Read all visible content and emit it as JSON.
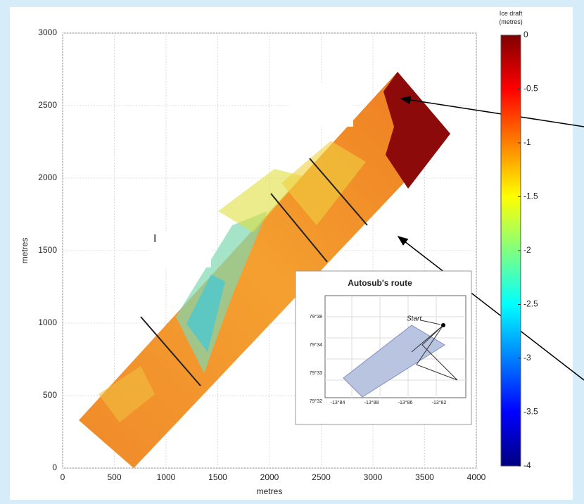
{
  "chart_data": {
    "type": "heatmap",
    "xlabel": "metres",
    "ylabel": "metres",
    "xlim": [
      0,
      4000
    ],
    "ylim": [
      0,
      3000
    ],
    "xticks": [
      0,
      500,
      1000,
      1500,
      2000,
      2500,
      3000,
      3500,
      4000
    ],
    "yticks": [
      0,
      500,
      1000,
      1500,
      2000,
      2500,
      3000
    ],
    "grid": true,
    "annotation": "I",
    "colorbar": {
      "label": "Ice draft (metres)",
      "lim": [
        -4,
        0
      ],
      "ticks": [
        0,
        -0.5,
        -1,
        -1.5,
        -2,
        -2.5,
        -3,
        -3.5,
        -4
      ],
      "colormap": [
        "#7f0000",
        "#ff0000",
        "#ff8000",
        "#ffff00",
        "#80ff80",
        "#00ffff",
        "#0080ff",
        "#0000ff",
        "#00007f"
      ]
    },
    "inset": {
      "title": "Autosub's route",
      "start_label": "Start",
      "yticks": [
        "79°38",
        "79°34",
        "79°33",
        "79°32"
      ],
      "xticks": [
        "-13°84",
        "-13°88",
        "-13°86",
        "-13°82"
      ]
    }
  }
}
